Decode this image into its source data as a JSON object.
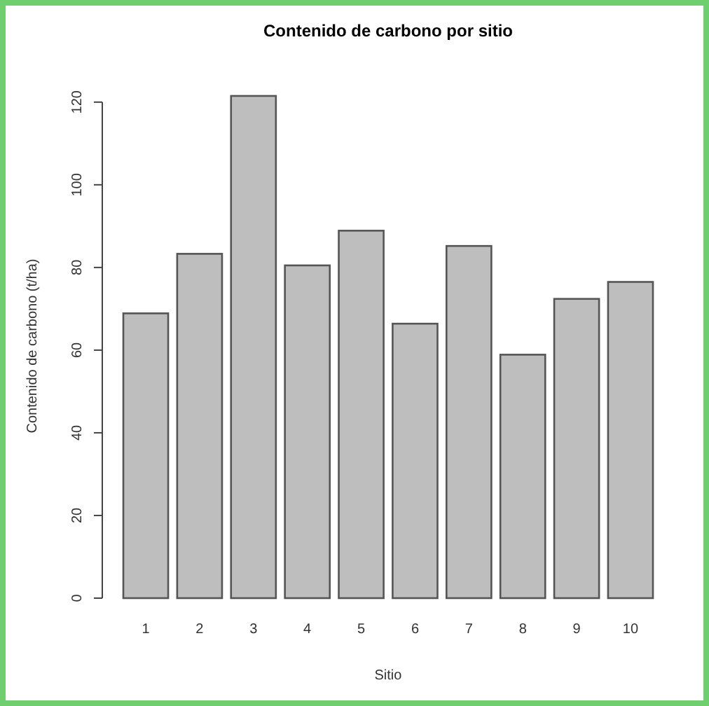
{
  "chart_data": {
    "type": "bar",
    "title": "Contenido de carbono por sitio",
    "xlabel": "Sitio",
    "ylabel": "Contenido de carbono (t/ha)",
    "categories": [
      "1",
      "2",
      "3",
      "4",
      "5",
      "6",
      "7",
      "8",
      "9",
      "10"
    ],
    "values": [
      68.9,
      83.3,
      121.5,
      80.5,
      88.9,
      66.4,
      85.2,
      58.9,
      72.4,
      76.5
    ],
    "color": "#bebebe",
    "ylim": [
      0,
      122
    ],
    "yticks": [
      0,
      20,
      40,
      60,
      80,
      100,
      120
    ]
  }
}
